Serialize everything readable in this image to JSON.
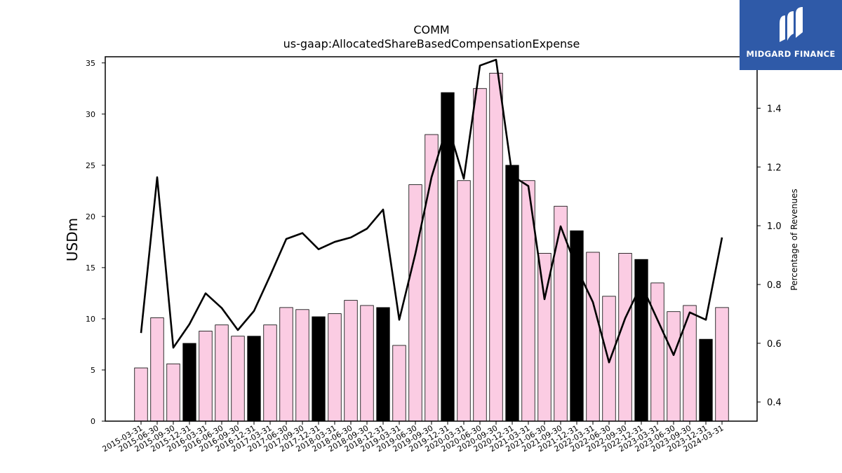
{
  "chart_data": {
    "type": "bar",
    "title": "COMM",
    "subtitle": "us-gaap:AllocatedShareBasedCompensationExpense",
    "ylabel": "USDm",
    "y2label": "Percentage of Revenues",
    "ylim": [
      0,
      35.6
    ],
    "y2lim": [
      0.335,
      1.575
    ],
    "yticks": [
      0,
      5,
      10,
      15,
      20,
      25,
      30,
      35
    ],
    "y2ticks": [
      0.4,
      0.6,
      0.8,
      1.0,
      1.2,
      1.4
    ],
    "y2ticklabels": [
      "0.4",
      "0.6",
      "0.8",
      "1.0",
      "1.2",
      "1.4"
    ],
    "categories": [
      "2015-03-31",
      "2015-06-30",
      "2015-09-30",
      "2015-12-31",
      "2016-03-31",
      "2016-06-30",
      "2016-09-30",
      "2016-12-31",
      "2017-03-31",
      "2017-06-30",
      "2017-09-30",
      "2017-12-31",
      "2018-03-31",
      "2018-06-30",
      "2018-09-30",
      "2018-12-31",
      "2019-03-31",
      "2019-06-30",
      "2019-09-30",
      "2019-12-31",
      "2020-03-31",
      "2020-06-30",
      "2020-09-30",
      "2020-12-31",
      "2021-03-31",
      "2021-06-30",
      "2021-09-30",
      "2021-12-31",
      "2022-03-31",
      "2022-06-30",
      "2022-09-30",
      "2022-12-31",
      "2023-03-31",
      "2023-06-30",
      "2023-09-30",
      "2023-12-31",
      "2024-03-31"
    ],
    "series": [
      {
        "kind": "bar",
        "values": [
          5.2,
          10.1,
          5.6,
          7.6,
          8.8,
          9.4,
          8.3,
          8.3,
          9.4,
          11.1,
          10.9,
          10.2,
          10.5,
          11.8,
          11.3,
          11.1,
          7.4,
          23.1,
          28.0,
          32.1,
          23.5,
          32.5,
          34.0,
          25.0,
          23.5,
          16.4,
          21.0,
          18.6,
          16.5,
          12.2,
          16.4,
          15.8,
          13.5,
          10.7,
          11.3,
          8.0,
          11.1
        ],
        "highlight": [
          false,
          false,
          false,
          true,
          false,
          false,
          false,
          true,
          false,
          false,
          false,
          true,
          false,
          false,
          false,
          true,
          false,
          false,
          false,
          true,
          false,
          false,
          false,
          true,
          false,
          false,
          false,
          true,
          false,
          false,
          false,
          true,
          false,
          false,
          false,
          true,
          false
        ]
      },
      {
        "kind": "line",
        "axis": "right",
        "values": [
          0.635,
          1.165,
          0.585,
          0.665,
          0.77,
          0.72,
          0.645,
          0.71,
          0.83,
          0.955,
          0.975,
          0.92,
          0.945,
          0.96,
          0.99,
          1.055,
          0.68,
          0.905,
          1.165,
          1.345,
          1.16,
          1.545,
          1.565,
          1.17,
          1.135,
          0.75,
          0.998,
          0.855,
          0.74,
          0.535,
          0.685,
          0.8,
          0.68,
          0.56,
          0.705,
          0.68,
          0.96
        ]
      }
    ],
    "colors": {
      "bar": "#fbcce3",
      "highlight": "#000000",
      "line": "#000000",
      "edge": "#000000"
    }
  },
  "logo": {
    "text": "MIDGARD FINANCE",
    "background": "#2f5aa8"
  }
}
